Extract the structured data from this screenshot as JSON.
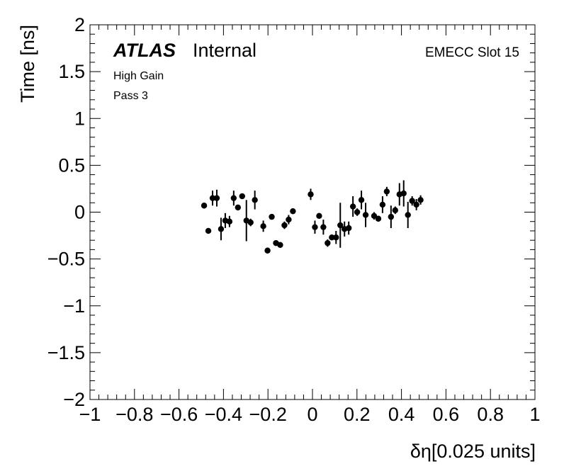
{
  "labels": {
    "atlas": "ATLAS",
    "internal": "Internal",
    "gain": "High Gain",
    "pass": "Pass 3",
    "slot": "EMECC Slot 15"
  },
  "chart_data": {
    "type": "scatter",
    "xlabel": "δη[0.025 units]",
    "ylabel": "Time [ns]",
    "xlim": [
      -1,
      1
    ],
    "ylim": [
      -2,
      2
    ],
    "xticks": [
      -1,
      -0.8,
      -0.6,
      -0.4,
      -0.2,
      0,
      0.2,
      0.4,
      0.6,
      0.8,
      1
    ],
    "xtick_labels": [
      "−1",
      "−0.8",
      "−0.6",
      "−0.4",
      "−0.2",
      "0",
      "0.2",
      "0.4",
      "0.6",
      "0.8",
      "1"
    ],
    "yticks": [
      -2,
      -1.5,
      -1,
      -0.5,
      0,
      0.5,
      1,
      1.5,
      2
    ],
    "ytick_labels": [
      "−2",
      "−1.5",
      "−1",
      "−0.5",
      "0",
      "0.5",
      "1",
      "1.5",
      "2"
    ],
    "grid": false,
    "marker_color": "#000000",
    "series": [
      {
        "points": [
          {
            "x": -0.487,
            "y": 0.07,
            "err": 0.03
          },
          {
            "x": -0.468,
            "y": -0.2,
            "err": 0.03
          },
          {
            "x": -0.449,
            "y": 0.15,
            "err": 0.08
          },
          {
            "x": -0.43,
            "y": 0.15,
            "err": 0.09
          },
          {
            "x": -0.411,
            "y": -0.18,
            "err": 0.12
          },
          {
            "x": -0.392,
            "y": -0.09,
            "err": 0.08
          },
          {
            "x": -0.373,
            "y": -0.1,
            "err": 0.06
          },
          {
            "x": -0.354,
            "y": 0.15,
            "err": 0.08
          },
          {
            "x": -0.335,
            "y": 0.05,
            "err": 0.03
          },
          {
            "x": -0.316,
            "y": 0.17,
            "err": 0.03
          },
          {
            "x": -0.297,
            "y": -0.09,
            "err": 0.22
          },
          {
            "x": -0.278,
            "y": -0.11,
            "err": 0.04
          },
          {
            "x": -0.259,
            "y": 0.13,
            "err": 0.1
          },
          {
            "x": -0.221,
            "y": -0.15,
            "err": 0.06
          },
          {
            "x": -0.202,
            "y": -0.41,
            "err": 0.03
          },
          {
            "x": -0.183,
            "y": -0.05,
            "err": 0.03
          },
          {
            "x": -0.164,
            "y": -0.33,
            "err": 0.03
          },
          {
            "x": -0.145,
            "y": -0.35,
            "err": 0.03
          },
          {
            "x": -0.126,
            "y": -0.14,
            "err": 0.04
          },
          {
            "x": -0.107,
            "y": -0.08,
            "err": 0.05
          },
          {
            "x": -0.088,
            "y": 0.01,
            "err": 0.03
          },
          {
            "x": -0.008,
            "y": 0.19,
            "err": 0.06
          },
          {
            "x": 0.011,
            "y": -0.16,
            "err": 0.07
          },
          {
            "x": 0.03,
            "y": -0.04,
            "err": 0.03
          },
          {
            "x": 0.049,
            "y": -0.16,
            "err": 0.08
          },
          {
            "x": 0.068,
            "y": -0.33,
            "err": 0.04
          },
          {
            "x": 0.087,
            "y": -0.27,
            "err": 0.03
          },
          {
            "x": 0.106,
            "y": -0.27,
            "err": 0.07
          },
          {
            "x": 0.125,
            "y": -0.14,
            "err": 0.24
          },
          {
            "x": 0.144,
            "y": -0.18,
            "err": 0.08
          },
          {
            "x": 0.163,
            "y": -0.17,
            "err": 0.07
          },
          {
            "x": 0.182,
            "y": 0.06,
            "err": 0.11
          },
          {
            "x": 0.201,
            "y": 0.0,
            "err": 0.04
          },
          {
            "x": 0.22,
            "y": 0.13,
            "err": 0.1
          },
          {
            "x": 0.239,
            "y": -0.03,
            "err": 0.13
          },
          {
            "x": 0.277,
            "y": -0.04,
            "err": 0.04
          },
          {
            "x": 0.296,
            "y": -0.07,
            "err": 0.03
          },
          {
            "x": 0.315,
            "y": 0.08,
            "err": 0.09
          },
          {
            "x": 0.334,
            "y": 0.22,
            "err": 0.05
          },
          {
            "x": 0.353,
            "y": -0.05,
            "err": 0.12
          },
          {
            "x": 0.372,
            "y": 0.02,
            "err": 0.04
          },
          {
            "x": 0.391,
            "y": 0.19,
            "err": 0.12
          },
          {
            "x": 0.41,
            "y": 0.2,
            "err": 0.14
          },
          {
            "x": 0.429,
            "y": -0.03,
            "err": 0.14
          },
          {
            "x": 0.448,
            "y": 0.12,
            "err": 0.05
          },
          {
            "x": 0.467,
            "y": 0.08,
            "err": 0.06
          },
          {
            "x": 0.486,
            "y": 0.13,
            "err": 0.05
          }
        ]
      }
    ]
  }
}
